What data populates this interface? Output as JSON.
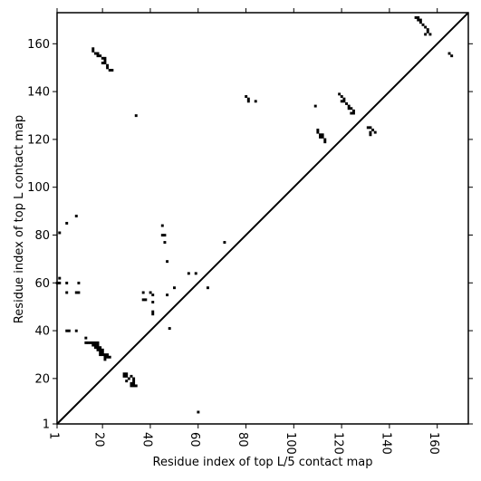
{
  "chart_data": {
    "type": "scatter",
    "xlabel": "Residue index of top L/5 contact map",
    "ylabel": "Residue index of top L contact map",
    "xlim": [
      1,
      173
    ],
    "ylim": [
      1,
      173
    ],
    "xticks": [
      1,
      20,
      40,
      60,
      80,
      100,
      120,
      140,
      160
    ],
    "yticks": [
      1,
      20,
      40,
      60,
      80,
      100,
      120,
      140,
      160
    ],
    "grid": false,
    "diagonal_line": true,
    "marker": "square",
    "color": "#000000",
    "series": [
      {
        "name": "",
        "points": [
          [
            152,
            171
          ],
          [
            151,
            171
          ],
          [
            153,
            170
          ],
          [
            152,
            170
          ],
          [
            153,
            169
          ],
          [
            154,
            168
          ],
          [
            155,
            167
          ],
          [
            156,
            166
          ],
          [
            156,
            165
          ],
          [
            157,
            164
          ],
          [
            155,
            164
          ],
          [
            165,
            156
          ],
          [
            166,
            155
          ],
          [
            16,
            158
          ],
          [
            16,
            157
          ],
          [
            17,
            156
          ],
          [
            18,
            156
          ],
          [
            18,
            155
          ],
          [
            19,
            155
          ],
          [
            20,
            154
          ],
          [
            21,
            154
          ],
          [
            21,
            153
          ],
          [
            20,
            152
          ],
          [
            21,
            152
          ],
          [
            22,
            151
          ],
          [
            22,
            150
          ],
          [
            23,
            149
          ],
          [
            24,
            149
          ],
          [
            34,
            130
          ],
          [
            80,
            138
          ],
          [
            81,
            137
          ],
          [
            81,
            136
          ],
          [
            84,
            136
          ],
          [
            109,
            134
          ],
          [
            119,
            139
          ],
          [
            120,
            138
          ],
          [
            121,
            137
          ],
          [
            120,
            136
          ],
          [
            121,
            136
          ],
          [
            122,
            135
          ],
          [
            123,
            134
          ],
          [
            123,
            133
          ],
          [
            124,
            133
          ],
          [
            125,
            132
          ],
          [
            124,
            131
          ],
          [
            125,
            131
          ],
          [
            110,
            124
          ],
          [
            110,
            123
          ],
          [
            111,
            122
          ],
          [
            112,
            122
          ],
          [
            111,
            121
          ],
          [
            112,
            121
          ],
          [
            113,
            120
          ],
          [
            113,
            119
          ],
          [
            131,
            125
          ],
          [
            132,
            125
          ],
          [
            133,
            124
          ],
          [
            132,
            123
          ],
          [
            134,
            123
          ],
          [
            132,
            122
          ],
          [
            9,
            88
          ],
          [
            5,
            85
          ],
          [
            2,
            81
          ],
          [
            45,
            84
          ],
          [
            45,
            80
          ],
          [
            46,
            80
          ],
          [
            46,
            77
          ],
          [
            71,
            77
          ],
          [
            47,
            69
          ],
          [
            56,
            64
          ],
          [
            59,
            64
          ],
          [
            2,
            62
          ],
          [
            1,
            60
          ],
          [
            2,
            60
          ],
          [
            5,
            60
          ],
          [
            10,
            60
          ],
          [
            50,
            58
          ],
          [
            64,
            58
          ],
          [
            5,
            56
          ],
          [
            9,
            56
          ],
          [
            10,
            56
          ],
          [
            37,
            56
          ],
          [
            40,
            56
          ],
          [
            41,
            55
          ],
          [
            47,
            55
          ],
          [
            37,
            53
          ],
          [
            38,
            53
          ],
          [
            41,
            52
          ],
          [
            41,
            48
          ],
          [
            41,
            47
          ],
          [
            48,
            41
          ],
          [
            5,
            40
          ],
          [
            6,
            40
          ],
          [
            9,
            40
          ],
          [
            13,
            37
          ],
          [
            13,
            35
          ],
          [
            14,
            35
          ],
          [
            15,
            35
          ],
          [
            16,
            35
          ],
          [
            17,
            35
          ],
          [
            18,
            35
          ],
          [
            16,
            34
          ],
          [
            17,
            34
          ],
          [
            18,
            34
          ],
          [
            17,
            33
          ],
          [
            18,
            33
          ],
          [
            19,
            33
          ],
          [
            18,
            32
          ],
          [
            19,
            32
          ],
          [
            20,
            32
          ],
          [
            19,
            31
          ],
          [
            20,
            31
          ],
          [
            19,
            30
          ],
          [
            20,
            30
          ],
          [
            21,
            30
          ],
          [
            22,
            30
          ],
          [
            21,
            29
          ],
          [
            22,
            29
          ],
          [
            21,
            28
          ],
          [
            23,
            29
          ],
          [
            29,
            22
          ],
          [
            30,
            22
          ],
          [
            29,
            21
          ],
          [
            30,
            21
          ],
          [
            32,
            21
          ],
          [
            31,
            20
          ],
          [
            30,
            19
          ],
          [
            33,
            20
          ],
          [
            33,
            19
          ],
          [
            32,
            18
          ],
          [
            33,
            18
          ],
          [
            32,
            17
          ],
          [
            33,
            17
          ],
          [
            34,
            17
          ],
          [
            60,
            6
          ]
        ]
      }
    ]
  }
}
